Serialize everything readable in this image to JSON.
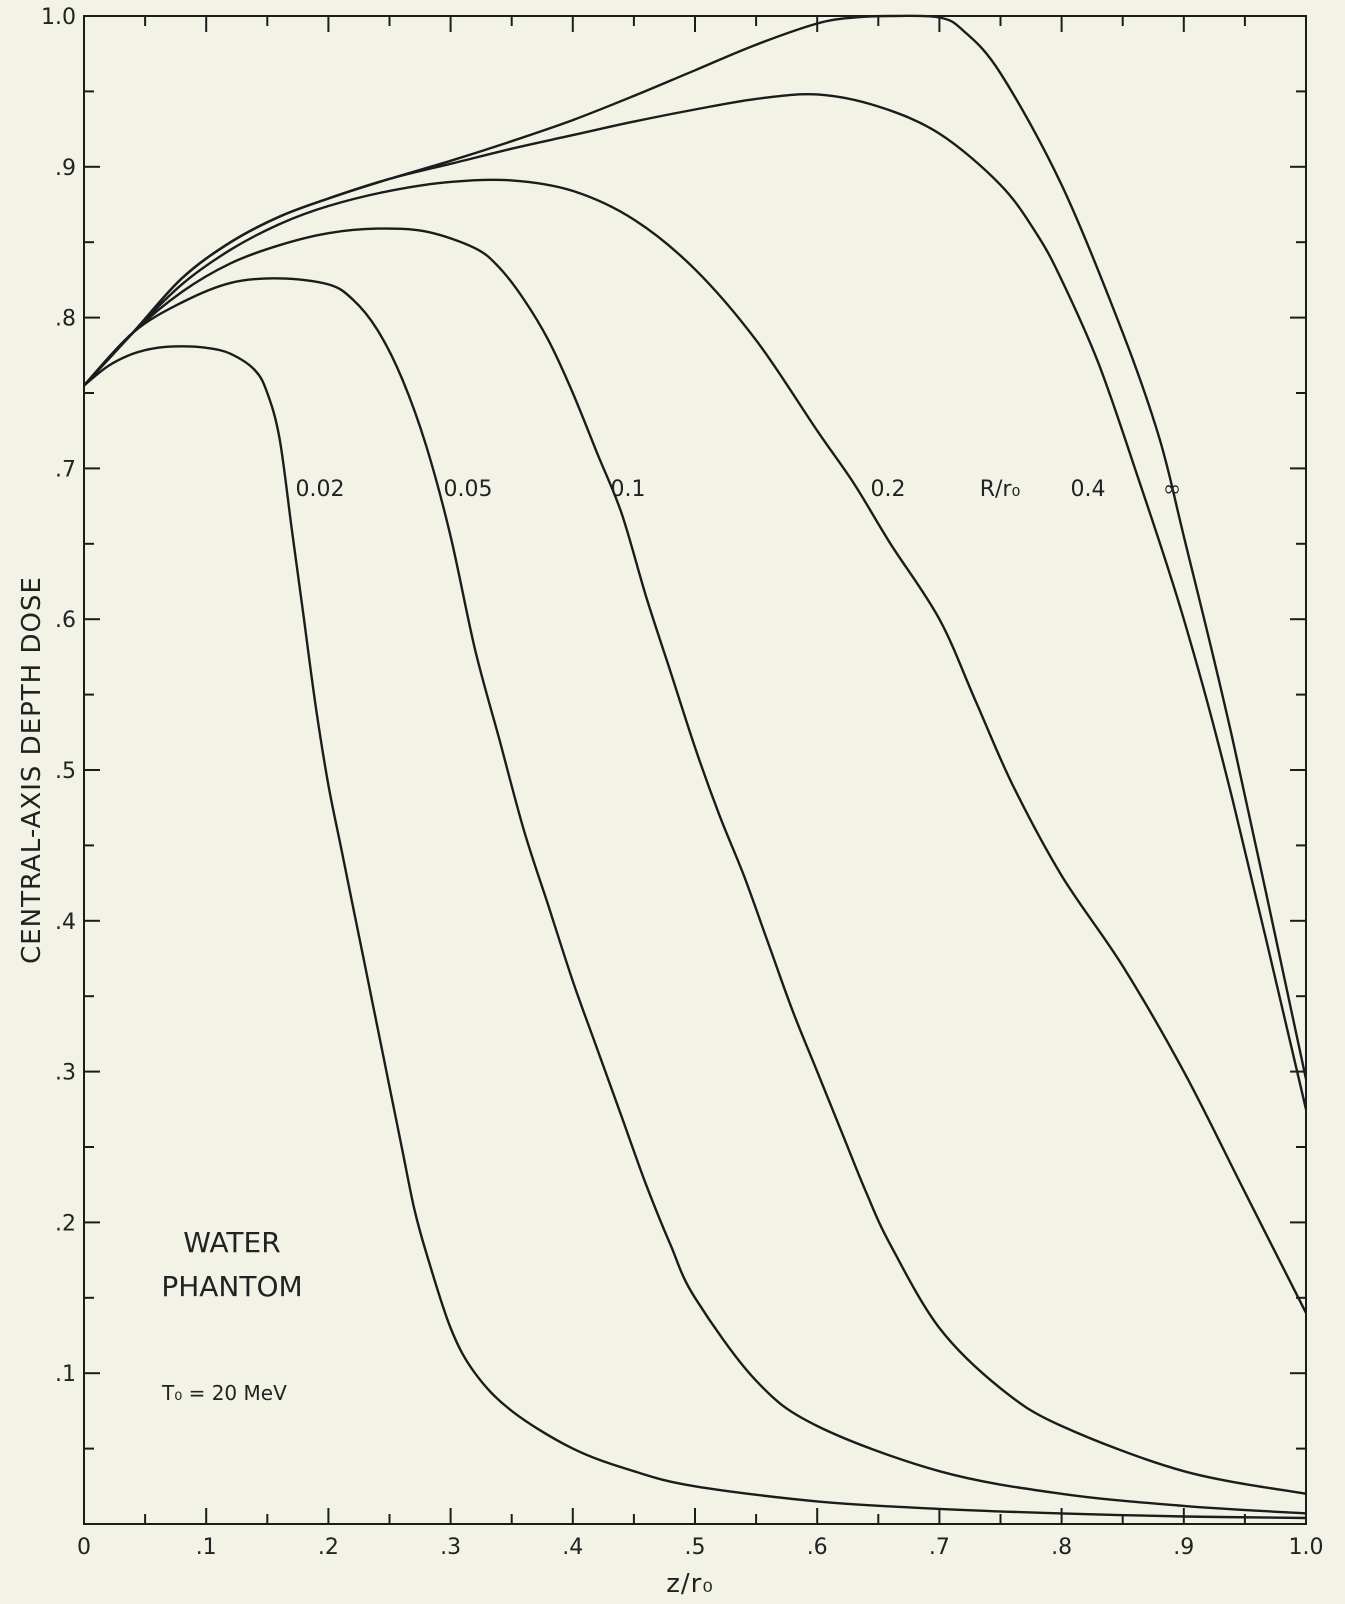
{
  "chart_data": {
    "type": "line",
    "xlabel": "z/r₀",
    "ylabel": "CENTRAL-AXIS  DEPTH DOSE",
    "xlim": [
      0,
      1.0
    ],
    "ylim": [
      0,
      1.0
    ],
    "x_ticks": [
      "0",
      ".1",
      ".2",
      ".3",
      ".4",
      ".5",
      ".6",
      ".7",
      ".8",
      ".9",
      "1.0"
    ],
    "y_ticks": [
      ".1",
      ".2",
      ".3",
      ".4",
      ".5",
      ".6",
      ".7",
      ".8",
      ".9",
      "1.0"
    ],
    "legend_title": "R/r₀",
    "annotations": {
      "phantom_line1": "WATER",
      "phantom_line2": "PHANTOM",
      "energy": "T₀ = 20 MeV"
    },
    "series": [
      {
        "name": "0.02",
        "x": [
          0.0,
          0.02,
          0.04,
          0.06,
          0.08,
          0.1,
          0.12,
          0.14,
          0.15,
          0.16,
          0.17,
          0.18,
          0.19,
          0.2,
          0.21,
          0.22,
          0.23,
          0.24,
          0.25,
          0.26,
          0.27,
          0.28,
          0.3,
          0.32,
          0.35,
          0.4,
          0.45,
          0.5,
          0.6,
          0.7,
          0.8,
          0.9,
          1.0
        ],
        "y": [
          0.755,
          0.768,
          0.776,
          0.78,
          0.781,
          0.78,
          0.776,
          0.765,
          0.75,
          0.72,
          0.66,
          0.6,
          0.54,
          0.49,
          0.45,
          0.41,
          0.37,
          0.33,
          0.29,
          0.25,
          0.21,
          0.18,
          0.13,
          0.1,
          0.075,
          0.05,
          0.035,
          0.025,
          0.015,
          0.01,
          0.007,
          0.005,
          0.004
        ]
      },
      {
        "name": "0.05",
        "x": [
          0.0,
          0.04,
          0.08,
          0.12,
          0.16,
          0.2,
          0.22,
          0.24,
          0.26,
          0.28,
          0.3,
          0.32,
          0.34,
          0.36,
          0.38,
          0.4,
          0.42,
          0.44,
          0.46,
          0.48,
          0.5,
          0.55,
          0.6,
          0.7,
          0.8,
          0.9,
          1.0
        ],
        "y": [
          0.755,
          0.79,
          0.81,
          0.823,
          0.826,
          0.822,
          0.812,
          0.792,
          0.76,
          0.715,
          0.655,
          0.58,
          0.52,
          0.46,
          0.41,
          0.36,
          0.315,
          0.27,
          0.225,
          0.185,
          0.15,
          0.095,
          0.065,
          0.035,
          0.02,
          0.012,
          0.007
        ]
      },
      {
        "name": "0.1",
        "x": [
          0.0,
          0.04,
          0.08,
          0.12,
          0.16,
          0.2,
          0.24,
          0.28,
          0.32,
          0.34,
          0.36,
          0.38,
          0.4,
          0.42,
          0.44,
          0.46,
          0.48,
          0.5,
          0.52,
          0.54,
          0.56,
          0.58,
          0.6,
          0.62,
          0.64,
          0.66,
          0.7,
          0.75,
          0.8,
          0.9,
          1.0
        ],
        "y": [
          0.755,
          0.79,
          0.817,
          0.836,
          0.848,
          0.856,
          0.859,
          0.857,
          0.846,
          0.833,
          0.812,
          0.785,
          0.75,
          0.71,
          0.67,
          0.615,
          0.565,
          0.515,
          0.47,
          0.43,
          0.385,
          0.34,
          0.3,
          0.26,
          0.22,
          0.185,
          0.13,
          0.09,
          0.065,
          0.035,
          0.02
        ]
      },
      {
        "name": "0.2",
        "x": [
          0.0,
          0.04,
          0.08,
          0.12,
          0.16,
          0.2,
          0.25,
          0.3,
          0.35,
          0.4,
          0.45,
          0.5,
          0.55,
          0.6,
          0.63,
          0.66,
          0.7,
          0.73,
          0.76,
          0.8,
          0.85,
          0.9,
          0.95,
          1.0
        ],
        "y": [
          0.755,
          0.79,
          0.822,
          0.845,
          0.862,
          0.874,
          0.884,
          0.89,
          0.891,
          0.884,
          0.865,
          0.832,
          0.785,
          0.725,
          0.69,
          0.65,
          0.6,
          0.545,
          0.49,
          0.43,
          0.37,
          0.3,
          0.22,
          0.14
        ]
      },
      {
        "name": "0.4",
        "x": [
          0.0,
          0.04,
          0.08,
          0.12,
          0.16,
          0.2,
          0.25,
          0.3,
          0.35,
          0.4,
          0.45,
          0.5,
          0.55,
          0.6,
          0.65,
          0.7,
          0.75,
          0.78,
          0.8,
          0.83,
          0.86,
          0.9,
          0.94,
          1.0
        ],
        "y": [
          0.755,
          0.79,
          0.826,
          0.85,
          0.867,
          0.879,
          0.892,
          0.902,
          0.912,
          0.921,
          0.93,
          0.938,
          0.945,
          0.948,
          0.94,
          0.922,
          0.888,
          0.855,
          0.825,
          0.77,
          0.7,
          0.6,
          0.48,
          0.275
        ]
      },
      {
        "name": "∞",
        "x": [
          0.0,
          0.04,
          0.08,
          0.12,
          0.16,
          0.2,
          0.25,
          0.3,
          0.35,
          0.4,
          0.45,
          0.5,
          0.55,
          0.6,
          0.63,
          0.66,
          0.7,
          0.72,
          0.75,
          0.8,
          0.85,
          0.88,
          0.9,
          0.94,
          1.0
        ],
        "y": [
          0.755,
          0.79,
          0.826,
          0.85,
          0.867,
          0.879,
          0.892,
          0.904,
          0.917,
          0.931,
          0.947,
          0.964,
          0.981,
          0.995,
          0.999,
          1.0,
          0.999,
          0.99,
          0.962,
          0.888,
          0.79,
          0.72,
          0.655,
          0.52,
          0.295
        ]
      }
    ]
  }
}
